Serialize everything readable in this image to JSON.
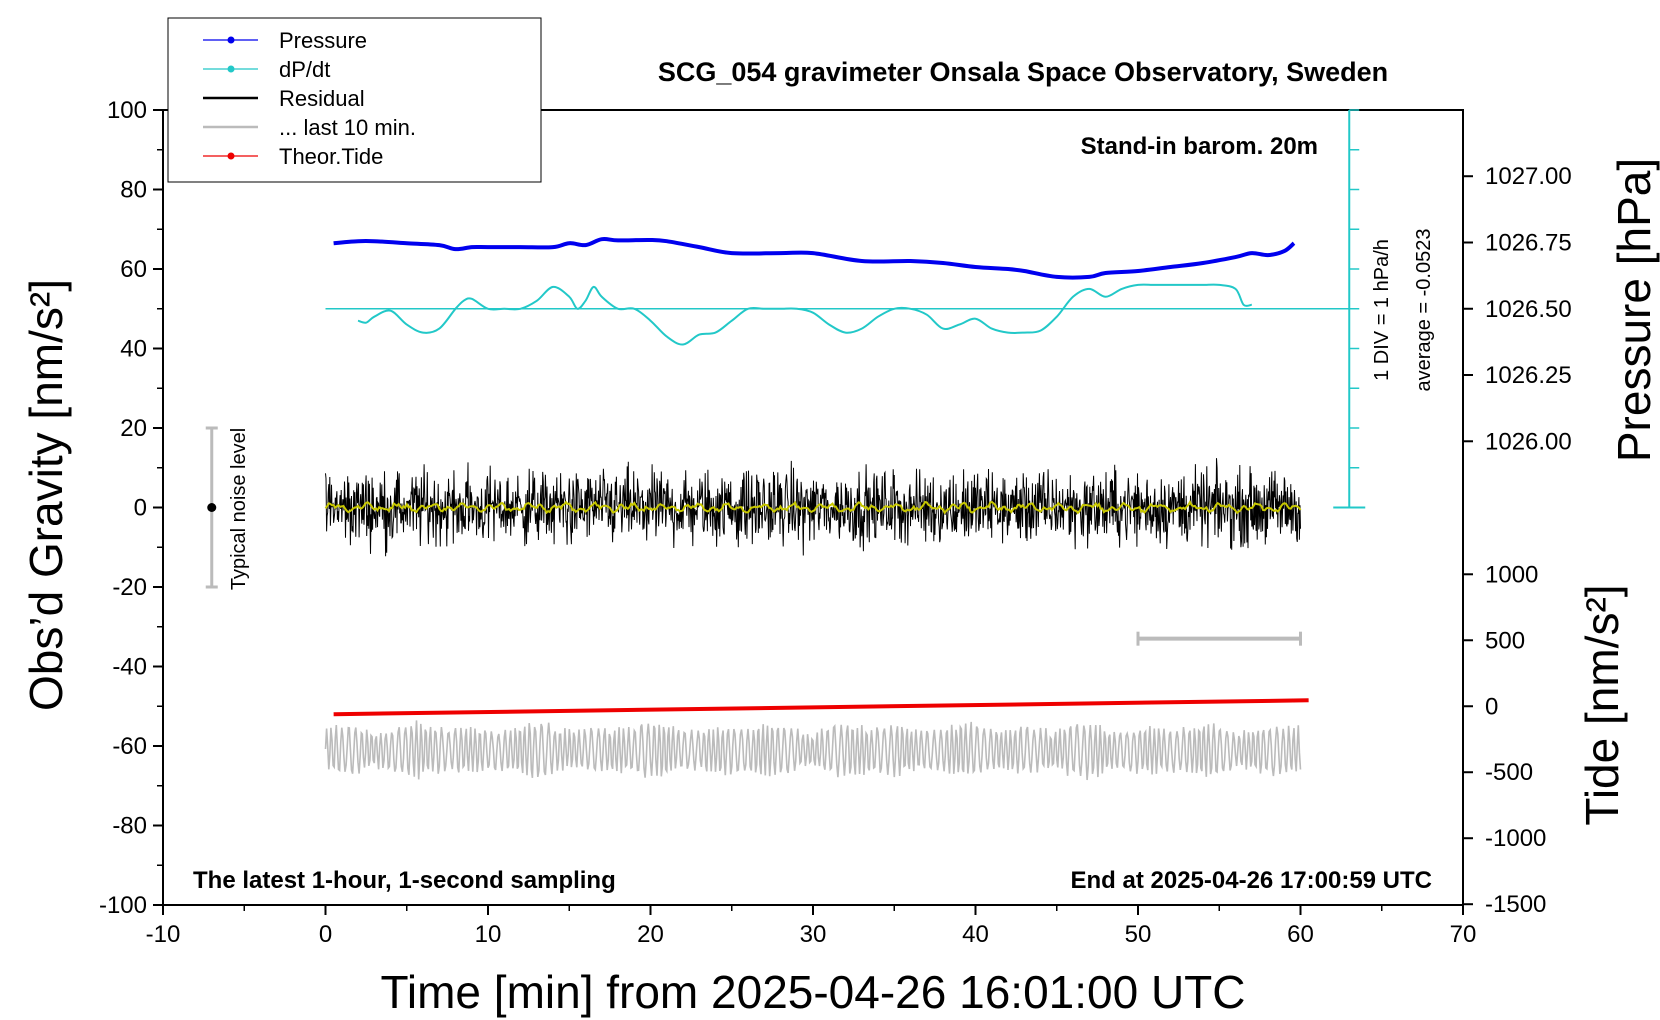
{
  "chart_data": {
    "type": "line",
    "title": "SCG_054 gravimeter Onsala Space Observatory, Sweden",
    "xlabel": "Time [min] from 2025-04-26 16:01:00 UTC",
    "ylabel_left": "Obs’d Gravity [nm/s²]",
    "ylabel_right_pressure": "Pressure [hPa]",
    "ylabel_right_tide": "Tide [nm/s²]",
    "xlim": [
      -10,
      70
    ],
    "ylim_left": [
      -100,
      100
    ],
    "x_ticks": [
      "-10",
      "0",
      "10",
      "20",
      "30",
      "40",
      "50",
      "60",
      "70"
    ],
    "y_ticks_left": [
      "100",
      "80",
      "60",
      "40",
      "20",
      "0",
      "-20",
      "-40",
      "-60",
      "-80",
      "-100"
    ],
    "pressure_ticks": [
      "1027.00",
      "1026.75",
      "1026.50",
      "1026.25",
      "1026.00"
    ],
    "tide_ticks": [
      "1000",
      "500",
      "0",
      "-500",
      "-1000",
      "-1500"
    ],
    "annotations": {
      "barometer": "Stand-in barom. 20m",
      "div_label": "1 DIV = 1 hPa/h",
      "average_label": "average = -0.0523",
      "noise_label": "Typical noise level",
      "sampling": "The latest 1-hour, 1-second sampling",
      "end_time": "End at 2025-04-26 17:00:59 UTC"
    },
    "legend": {
      "position": "top-left",
      "entries": [
        {
          "label": "Pressure",
          "color": "#0000ee",
          "style": "line-dot"
        },
        {
          "label": "dP/dt",
          "color": "#22c8c8",
          "style": "line-dot"
        },
        {
          "label": "Residual",
          "color": "#000000",
          "style": "line"
        },
        {
          "label": "... last 10 min.",
          "color": "#bbbbbb",
          "style": "line"
        },
        {
          "label": "Theor.Tide",
          "color": "#ee0000",
          "style": "line-dot"
        }
      ]
    },
    "series": {
      "pressure": {
        "color": "#0000ee",
        "x": [
          0.5,
          2,
          3,
          5,
          7,
          8,
          9,
          10,
          12,
          14,
          15,
          16,
          17,
          18,
          20,
          21,
          23,
          25,
          28,
          30,
          33,
          36,
          38,
          40,
          42,
          43,
          45,
          47,
          48,
          50,
          52,
          54,
          56,
          57,
          58,
          59,
          59.6
        ],
        "y": [
          66.5,
          67,
          67,
          66.5,
          66,
          65,
          65.5,
          65.5,
          65.5,
          65.5,
          66.5,
          66,
          67.5,
          67.2,
          67.3,
          67,
          65.5,
          64,
          64,
          64,
          62,
          62,
          61.5,
          60.5,
          60,
          59.5,
          58,
          58,
          59,
          59.5,
          60.5,
          61.5,
          63,
          64,
          63.5,
          64.5,
          66.5
        ]
      },
      "dpdt": {
        "color": "#22c8c8",
        "baseline": 50,
        "x": [
          2,
          2.5,
          3,
          4,
          5,
          6,
          7,
          8,
          8.5,
          9,
          10,
          11,
          12,
          13,
          14,
          15,
          15.5,
          16,
          16.5,
          17,
          18,
          19,
          20,
          21,
          22,
          23,
          24,
          25,
          26,
          27,
          28,
          29,
          30,
          31,
          32,
          33,
          34,
          35,
          36,
          37,
          38,
          39,
          40,
          41,
          42,
          43,
          44,
          45,
          46,
          47,
          48,
          49,
          50,
          51,
          52,
          53,
          54,
          55,
          56,
          56.5,
          57
        ],
        "y": [
          47,
          46.5,
          48,
          49.5,
          46,
          44,
          45,
          50,
          52,
          52.5,
          50,
          50,
          50,
          52,
          55.5,
          53,
          50,
          52,
          55.5,
          53,
          50,
          50,
          47,
          43,
          41,
          43.5,
          44,
          47,
          50,
          50,
          50,
          50,
          49,
          46,
          44,
          45,
          48,
          50,
          50,
          48.5,
          45,
          46,
          47.5,
          45,
          44,
          44,
          44.5,
          48,
          53,
          55,
          53,
          55,
          56,
          56,
          56,
          56,
          56,
          56,
          55,
          51,
          51
        ]
      },
      "residual": {
        "color": "#000000",
        "x_range": [
          0,
          60
        ],
        "center": 0,
        "amplitude": 5
      },
      "residual_smoothed": {
        "color": "#c8c800",
        "x_range": [
          0,
          60
        ],
        "center": 0,
        "amplitude": 1
      },
      "last_10_min": {
        "color": "#bbbbbb",
        "x_range": [
          0,
          60
        ],
        "center": -61,
        "amplitude": 5
      },
      "theoretical_tide": {
        "color": "#ee0000",
        "x": [
          0.5,
          60.5
        ],
        "y": [
          -52,
          -48.5
        ]
      },
      "div_axis": {
        "color": "#22c8c8",
        "x": 63,
        "y_range": [
          0,
          100
        ],
        "tick_step": 10
      },
      "noise_bar": {
        "color": "#bbbbbb",
        "x": -7,
        "y_range": [
          -20,
          20
        ],
        "center": 0
      },
      "scale_bar": {
        "color": "#bbbbbb",
        "x_range": [
          50,
          60
        ],
        "y": -33
      }
    }
  }
}
